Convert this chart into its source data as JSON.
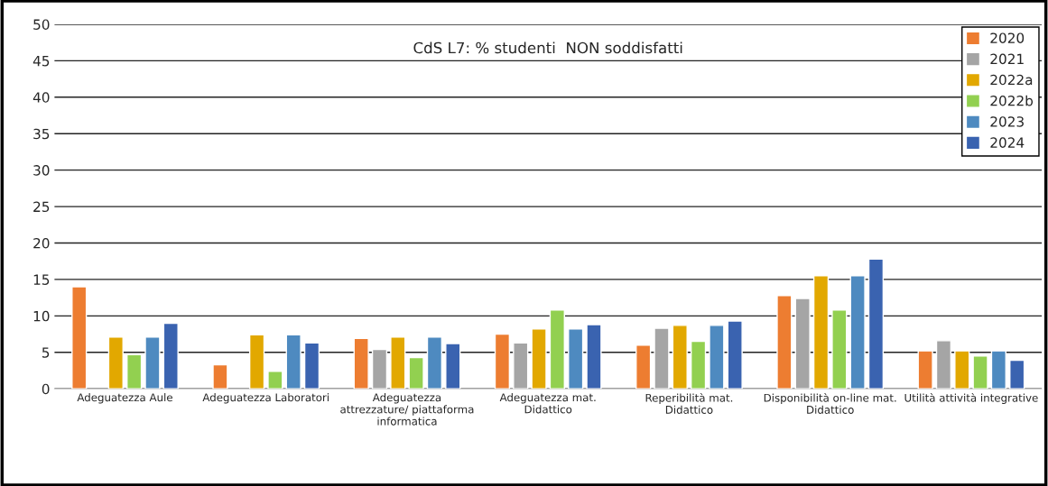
{
  "chart_data": {
    "type": "bar",
    "title": "CdS L7: % studenti  NON soddisfatti",
    "categories": [
      "Adeguatezza Aule",
      "Adeguatezza Laboratori",
      "Adeguatezza\nattrezzature/ piattaforma\ninformatica",
      "Adeguatezza mat.\nDidattico",
      "Reperibilità mat.\nDidattico",
      "Disponibilità on-line mat.\nDidattico",
      "Utilità attività integrative"
    ],
    "series": [
      {
        "name": "2020",
        "color": "#ed7d31",
        "values": [
          14,
          3.3,
          6.9,
          7.5,
          6.0,
          12.8,
          5.2
        ]
      },
      {
        "name": "2021",
        "color": "#a5a5a5",
        "values": [
          null,
          null,
          5.4,
          6.3,
          8.3,
          12.4,
          6.6
        ]
      },
      {
        "name": "2022a",
        "color": "#e2a800",
        "values": [
          7.1,
          7.4,
          7.1,
          8.2,
          8.7,
          15.5,
          5.2
        ]
      },
      {
        "name": "2022b",
        "color": "#92d050",
        "values": [
          4.7,
          2.4,
          4.3,
          10.8,
          6.5,
          10.8,
          4.5
        ]
      },
      {
        "name": "2023",
        "color": "#4e8ac0",
        "values": [
          7.1,
          7.4,
          7.1,
          8.2,
          8.7,
          15.5,
          5.2
        ]
      },
      {
        "name": "2024",
        "color": "#3a63b0",
        "values": [
          9.0,
          6.3,
          6.2,
          8.8,
          9.3,
          17.8,
          3.9
        ]
      }
    ],
    "ylim": [
      0,
      50
    ],
    "yticks": [
      0,
      5,
      10,
      15,
      20,
      25,
      30,
      35,
      40,
      45,
      50
    ],
    "grid": "y",
    "legend": "top right"
  }
}
